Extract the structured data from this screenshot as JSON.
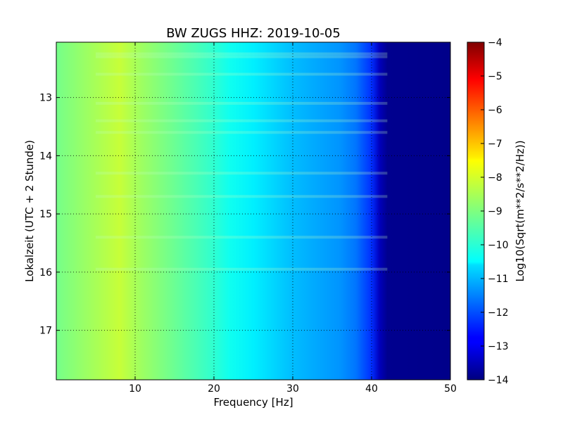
{
  "chart_data": {
    "type": "heatmap",
    "title": "BW ZUGS HHZ: 2019-10-05",
    "xlabel": "Frequency [Hz]",
    "ylabel": "Lokalzeit (UTC + 2 Stunde)",
    "colorbar_label": "Log10(Sqrt(m**2/s**2/Hz))",
    "xlim": [
      0,
      50
    ],
    "ylim": [
      17.85,
      12.05
    ],
    "xticks": [
      10,
      20,
      30,
      40,
      50
    ],
    "xtick_labels": [
      "10",
      "20",
      "30",
      "40",
      "50"
    ],
    "yticks": [
      13,
      14,
      15,
      16,
      17
    ],
    "ytick_labels": [
      "13",
      "14",
      "15",
      "16",
      "17"
    ],
    "colorbar_range": [
      -14,
      -4
    ],
    "colorbar_ticks": [
      -4,
      -5,
      -6,
      -7,
      -8,
      -9,
      -10,
      -11,
      -12,
      -13,
      -14
    ],
    "colorbar_tick_labels": [
      "−4",
      "−5",
      "−6",
      "−7",
      "−8",
      "−9",
      "−10",
      "−11",
      "−12",
      "−13",
      "−14"
    ],
    "colormap": "jet",
    "grid": true,
    "spectrum_profile": {
      "frequency_hz": [
        0,
        5,
        8,
        10,
        15,
        20,
        22,
        25,
        28,
        30,
        33,
        36,
        38,
        40,
        41,
        42,
        50
      ],
      "log_amplitude": [
        -9.1,
        -8.6,
        -8.3,
        -8.6,
        -9.2,
        -9.8,
        -10.1,
        -10.4,
        -10.7,
        -10.9,
        -11.1,
        -11.3,
        -11.6,
        -12.3,
        -13.4,
        -13.85,
        -13.9
      ]
    },
    "horizontal_bands_local_hour": [
      12.25,
      12.3,
      12.6,
      13.1,
      13.4,
      13.6,
      14.3,
      14.7,
      15.4,
      15.95
    ]
  }
}
